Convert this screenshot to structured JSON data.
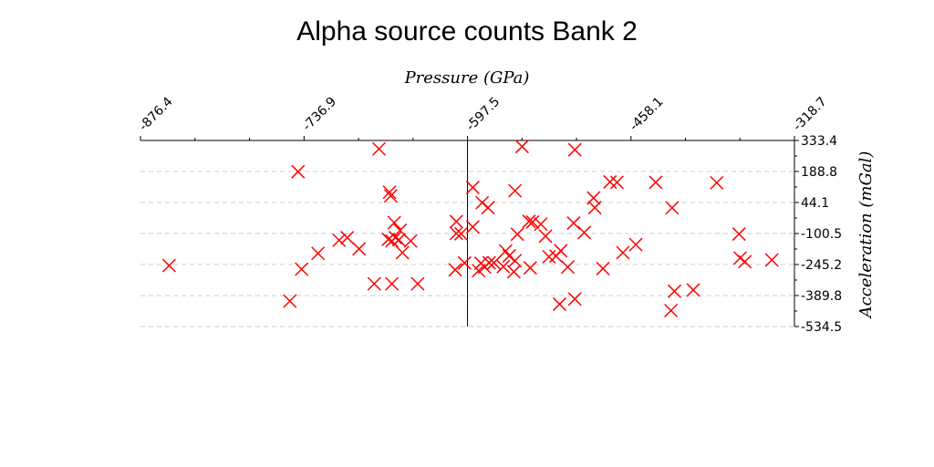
{
  "chart_data": {
    "type": "scatter",
    "title": "Alpha source counts Bank 2",
    "xlabel": "Pressure (GPa)",
    "ylabel": "Acceleration (mGal)",
    "x_axis_position": "top",
    "y_axis_position": "right",
    "xlim": [
      -876.4,
      -318.7
    ],
    "ylim": [
      -534.5,
      333.4
    ],
    "x_ticks": [
      "-876.4",
      "-736.9",
      "-597.5",
      "-458.1",
      "-318.7"
    ],
    "y_ticks": [
      "333.4",
      "188.8",
      "44.1",
      "-100.5",
      "-245.2",
      "-389.8",
      "-534.5"
    ],
    "grid": "horizontal dashed",
    "marker": "x",
    "color": "#ff0000",
    "reference_line_x": -597.5,
    "series": [
      {
        "points": [
          [
            -852,
            -250
          ],
          [
            -742,
            188
          ],
          [
            -673,
            294
          ],
          [
            -690,
            -172
          ],
          [
            -700,
            -120
          ],
          [
            -707,
            -132
          ],
          [
            -725,
            -193
          ],
          [
            -739,
            -267
          ],
          [
            -749,
            -416
          ],
          [
            -677,
            -335
          ],
          [
            -664,
            92
          ],
          [
            -663,
            75
          ],
          [
            -660,
            -50
          ],
          [
            -662,
            -135
          ],
          [
            -665,
            -128
          ],
          [
            -656,
            -130
          ],
          [
            -655,
            -86
          ],
          [
            -653,
            -190
          ],
          [
            -659,
            -120
          ],
          [
            -646,
            -135
          ],
          [
            -640,
            -335
          ],
          [
            -662,
            -335
          ],
          [
            -607,
            -45
          ],
          [
            -603,
            -102
          ],
          [
            -593,
            -70
          ],
          [
            -593,
            114
          ],
          [
            -585,
            43
          ],
          [
            -580,
            20
          ],
          [
            -583,
            -257
          ],
          [
            -586,
            -239
          ],
          [
            -588,
            -274
          ],
          [
            -579,
            -237
          ],
          [
            -575,
            -237
          ],
          [
            -567,
            -255
          ],
          [
            -565,
            -182
          ],
          [
            -562,
            -205
          ],
          [
            -558,
            -279
          ],
          [
            -557,
            -227
          ],
          [
            -555,
            -104
          ],
          [
            -557,
            99
          ],
          [
            -551,
            305
          ],
          [
            -545,
            -44
          ],
          [
            -544,
            -261
          ],
          [
            -542,
            -47
          ],
          [
            -535,
            -57
          ],
          [
            -531,
            -113
          ],
          [
            -528,
            -209
          ],
          [
            -522,
            -206
          ],
          [
            -518,
            -181
          ],
          [
            -512,
            -257
          ],
          [
            -519,
            -430
          ],
          [
            -506,
            290
          ],
          [
            -506,
            -406
          ],
          [
            -507,
            -52
          ],
          [
            -498,
            -96
          ],
          [
            -489,
            20
          ],
          [
            -490,
            65
          ],
          [
            -482,
            -264
          ],
          [
            -476,
            140
          ],
          [
            -470,
            138
          ],
          [
            -465,
            -190
          ],
          [
            -454,
            -152
          ],
          [
            -437,
            138
          ],
          [
            -424,
            -460
          ],
          [
            -423,
            19
          ],
          [
            -421,
            -370
          ],
          [
            -405,
            -364
          ],
          [
            -385,
            136
          ],
          [
            -366,
            -103
          ],
          [
            -365,
            -215
          ],
          [
            -361,
            -232
          ],
          [
            -338,
            -224
          ],
          [
            -607,
            -100
          ],
          [
            -608,
            -270
          ],
          [
            -600,
            -238
          ]
        ]
      }
    ]
  }
}
